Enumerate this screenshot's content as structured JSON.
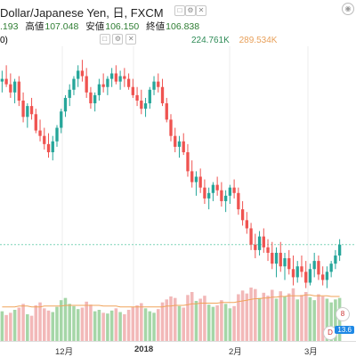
{
  "header": {
    "title": "Dollar/Japanese Yen, 日, FXCM",
    "ohlc": [
      {
        "label": "",
        "value": ".193"
      },
      {
        "label": "高値",
        "value": "107.048"
      },
      {
        "label": "安値",
        "value": "106.150"
      },
      {
        "label": "終値",
        "value": "106.838"
      }
    ],
    "volume": {
      "prefix": "0)",
      "v1": "224.761K",
      "v2": "289.534K"
    },
    "icons": [
      "square-icon",
      "gear-icon",
      "close-icon",
      "camera-icon"
    ]
  },
  "axis": {
    "labels": [
      {
        "text": "12月",
        "bold": false
      },
      {
        "text": "2018",
        "bold": true
      },
      {
        "text": "2月",
        "bold": false
      },
      {
        "text": "3月",
        "bold": false
      }
    ]
  },
  "badge": "13.6",
  "event_icons": [
    "8",
    "D",
    "8"
  ],
  "colors": {
    "up": "#26a69a",
    "down": "#ef5350",
    "vol_up": "#a5d6a7",
    "vol_down": "#f2b8b8",
    "ma": "#f0a35a",
    "grid": "#eeeeee",
    "hline": "#7dd3b8"
  },
  "chart_data": {
    "type": "candlestick",
    "candles": [
      [
        112.8,
        113.2,
        112.4,
        112.9
      ],
      [
        112.9,
        113.4,
        112.6,
        112.7
      ],
      [
        112.7,
        113.1,
        112.2,
        112.4
      ],
      [
        112.4,
        112.9,
        112.0,
        112.8
      ],
      [
        112.8,
        113.0,
        111.9,
        112.1
      ],
      [
        112.1,
        112.4,
        111.3,
        111.5
      ],
      [
        111.5,
        112.0,
        111.1,
        111.9
      ],
      [
        111.9,
        112.2,
        111.4,
        111.6
      ],
      [
        111.6,
        111.8,
        110.9,
        111.0
      ],
      [
        111.0,
        111.4,
        110.6,
        110.8
      ],
      [
        110.8,
        111.1,
        110.3,
        110.5
      ],
      [
        110.5,
        110.9,
        110.0,
        110.2
      ],
      [
        110.2,
        110.8,
        109.9,
        110.6
      ],
      [
        110.6,
        111.2,
        110.4,
        111.1
      ],
      [
        111.1,
        111.8,
        110.9,
        111.7
      ],
      [
        111.7,
        112.3,
        111.5,
        112.2
      ],
      [
        112.2,
        112.7,
        111.9,
        112.5
      ],
      [
        112.5,
        113.0,
        112.3,
        112.9
      ],
      [
        112.9,
        113.4,
        112.6,
        113.2
      ],
      [
        113.2,
        113.6,
        112.8,
        113.0
      ],
      [
        113.0,
        113.3,
        112.2,
        112.4
      ],
      [
        112.4,
        112.6,
        111.8,
        112.0
      ],
      [
        112.0,
        112.4,
        111.7,
        112.3
      ],
      [
        112.3,
        112.9,
        112.1,
        112.7
      ],
      [
        112.7,
        113.1,
        112.4,
        112.6
      ],
      [
        112.6,
        113.0,
        112.3,
        112.9
      ],
      [
        112.9,
        113.3,
        112.6,
        113.1
      ],
      [
        113.1,
        113.4,
        112.7,
        112.8
      ],
      [
        112.8,
        113.2,
        112.5,
        113.0
      ],
      [
        113.0,
        113.3,
        112.6,
        112.9
      ],
      [
        112.9,
        113.1,
        112.5,
        112.6
      ],
      [
        112.6,
        112.9,
        112.2,
        112.3
      ],
      [
        112.3,
        112.6,
        111.9,
        112.1
      ],
      [
        112.1,
        112.5,
        111.6,
        111.8
      ],
      [
        111.8,
        112.2,
        111.5,
        112.0
      ],
      [
        112.0,
        112.6,
        111.8,
        112.5
      ],
      [
        112.5,
        113.0,
        112.3,
        112.8
      ],
      [
        112.8,
        113.1,
        112.4,
        112.6
      ],
      [
        112.6,
        112.9,
        111.9,
        112.0
      ],
      [
        112.0,
        112.2,
        111.3,
        111.4
      ],
      [
        111.4,
        111.6,
        110.6,
        110.8
      ],
      [
        110.8,
        111.1,
        110.2,
        110.4
      ],
      [
        110.4,
        110.8,
        110.0,
        110.6
      ],
      [
        110.6,
        110.9,
        110.1,
        110.2
      ],
      [
        110.2,
        110.5,
        109.3,
        109.5
      ],
      [
        109.5,
        109.9,
        108.9,
        109.1
      ],
      [
        109.1,
        109.5,
        108.6,
        109.3
      ],
      [
        109.3,
        109.6,
        108.7,
        108.9
      ],
      [
        108.9,
        109.2,
        108.3,
        108.5
      ],
      [
        108.5,
        108.9,
        108.1,
        108.7
      ],
      [
        108.7,
        109.1,
        108.4,
        109.0
      ],
      [
        109.0,
        109.3,
        108.6,
        108.8
      ],
      [
        108.8,
        109.1,
        108.2,
        108.4
      ],
      [
        108.4,
        108.8,
        108.0,
        108.6
      ],
      [
        108.6,
        109.0,
        108.3,
        108.9
      ],
      [
        108.9,
        109.2,
        108.5,
        108.7
      ],
      [
        108.7,
        108.9,
        107.9,
        108.1
      ],
      [
        108.1,
        108.4,
        107.5,
        107.7
      ],
      [
        107.7,
        108.0,
        107.2,
        107.4
      ],
      [
        107.4,
        107.6,
        106.6,
        106.8
      ],
      [
        106.8,
        107.2,
        106.3,
        106.6
      ],
      [
        106.6,
        107.3,
        106.4,
        107.1
      ],
      [
        107.1,
        107.4,
        106.5,
        106.7
      ],
      [
        106.7,
        107.0,
        106.2,
        106.5
      ],
      [
        106.5,
        106.9,
        105.9,
        106.1
      ],
      [
        106.1,
        106.7,
        105.6,
        106.5
      ],
      [
        106.5,
        106.9,
        105.8,
        106.0
      ],
      [
        106.0,
        106.5,
        105.5,
        106.3
      ],
      [
        106.3,
        106.6,
        105.7,
        105.9
      ],
      [
        105.9,
        106.4,
        105.3,
        105.6
      ],
      [
        105.6,
        106.2,
        105.4,
        106.0
      ],
      [
        106.0,
        106.4,
        105.6,
        105.8
      ],
      [
        105.8,
        106.2,
        105.2,
        105.4
      ],
      [
        105.4,
        106.1,
        105.3,
        105.9
      ],
      [
        105.9,
        106.5,
        105.6,
        106.2
      ],
      [
        106.2,
        106.4,
        105.5,
        105.7
      ],
      [
        105.7,
        106.0,
        105.3,
        105.5
      ],
      [
        105.5,
        106.0,
        105.2,
        105.8
      ],
      [
        105.8,
        106.2,
        105.6,
        106.1
      ],
      [
        106.1,
        106.6,
        105.9,
        106.4
      ],
      [
        106.4,
        107.0,
        106.2,
        106.8
      ]
    ],
    "volumes": [
      40,
      35,
      38,
      42,
      45,
      50,
      36,
      34,
      48,
      52,
      44,
      41,
      39,
      46,
      55,
      58,
      50,
      47,
      43,
      45,
      53,
      49,
      40,
      42,
      38,
      37,
      41,
      44,
      39,
      36,
      42,
      46,
      48,
      51,
      44,
      40,
      38,
      43,
      52,
      56,
      60,
      58,
      47,
      45,
      62,
      66,
      54,
      57,
      61,
      49,
      46,
      48,
      55,
      50,
      44,
      47,
      63,
      68,
      64,
      72,
      70,
      58,
      65,
      61,
      69,
      57,
      67,
      60,
      64,
      71,
      56,
      62,
      66,
      59,
      55,
      63,
      60,
      57,
      52,
      56,
      58
    ],
    "ma": [
      46,
      46,
      46,
      46,
      47,
      47,
      47,
      46,
      46,
      46,
      47,
      47,
      47,
      47,
      47,
      48,
      48,
      48,
      48,
      48,
      48,
      48,
      48,
      48,
      47,
      47,
      47,
      47,
      46,
      46,
      46,
      46,
      46,
      46,
      46,
      46,
      46,
      46,
      46,
      47,
      47,
      48,
      48,
      48,
      49,
      50,
      50,
      51,
      51,
      51,
      51,
      51,
      52,
      52,
      52,
      52,
      53,
      54,
      55,
      56,
      57,
      57,
      58,
      58,
      59,
      59,
      60,
      60,
      61,
      61,
      61,
      61,
      62,
      62,
      61,
      61,
      61,
      61,
      60,
      60,
      60
    ],
    "price_range": [
      104.5,
      114.0
    ],
    "horizontal_level": 106.8
  }
}
